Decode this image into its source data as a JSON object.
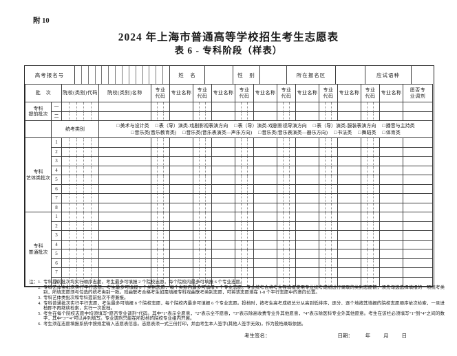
{
  "page": {
    "attachment_label": "附 10",
    "title": "2024 年上海市普通高等学校招生考生志愿表",
    "subtitle": "表 6  - 专科阶段（样表）"
  },
  "icons": {
    "checkbox_glyph": "□"
  },
  "info_row": {
    "exam_id_label": "高考报名号",
    "exam_id_box_count": 14,
    "name_label": "姓　名",
    "gender_label": "性　别",
    "district_label": "所在报名区",
    "language_label": "应试语种"
  },
  "header": {
    "batch": "批　次",
    "inst_code": "院校(类别)代码",
    "inst_name": "院校(类别)名称",
    "prof_code": "专业\n代码",
    "prof_name": "专业名称",
    "adjust": "愿否专\n业调剂",
    "pair_count": 6,
    "inst_code_subcells": 5,
    "prof_code_subcells": 3
  },
  "sections": [
    {
      "label": "专科\n提前批次",
      "rows": [
        "一",
        "二"
      ]
    },
    {
      "label": "专科\n艺体类批次",
      "rows": [
        "1",
        "2",
        "3",
        "4",
        "5",
        "6",
        "7",
        "8"
      ]
    },
    {
      "label": "专科\n普通批次",
      "rows": [
        "1",
        "2",
        "3",
        "4",
        "5",
        "6",
        "7",
        "8"
      ]
    }
  ],
  "unified_exam": {
    "label": "统考类别",
    "line1_options": [
      "美术与设计类",
      "表（导）演类-戏剧影视表演方向",
      "表（导）演类-戏剧影视导演方向",
      "表（导）演类-服装表演方向",
      "播音与主持类"
    ],
    "line2_options": [
      "音乐类(音乐教育类)",
      "音乐类(音乐表演类—声乐方向)",
      "音乐类(音乐表演类—器乐方向)",
      "书法类",
      "舞蹈类",
      "体育类"
    ]
  },
  "notes": {
    "prefix": "注：",
    "items": [
      "专科提前批次均实行顺序志愿，考生最多可填报 2 个院校志愿，每个院校内最多可填报 6 个专业志愿。",
      "专科艺体类批次实行平行志愿，考生最多可填报 8 个类别志愿，每个类别内最多可填报 6 个专业志愿。专业统考合格考生在填报使用专业统考成绩进行录取的类别志愿前，须先勾选选择填报的一项统考类别，所填志愿须与勾选的统考类别一致。戏曲联考合格考生如需填报专科戏曲联考类别志愿，可将该志愿填在 1-8 个平行志愿中的意向位置。",
      "专科艺体类批次和专科提前批次不得兼报。",
      "专科普通批次实行平行志愿，考生最多可填报 8 个院校志愿，每个院校内最多可填报 6 个专业志愿。投档时，按考生高考成绩总分从高到低排序，逐分、逐个地按其填报的院校志愿顺序依次检索，一旦进档即不再继续检索，实行一次投档。",
      "考生在每个院校志愿中均须填写“愿否专业调剂”代码。其中“1”表示全愿意，“2”表示全不愿意，“3”表示除高收费专业外其他愿意，“4”表示除医科专业外其他愿意。考生在该栏必须填写“1”到“4”之间的数字，其中“3”“4”可以并列填写。专业调剂只能在所投档的院校专业组内开展。",
      "考生须在志愿填报系统中按规定输入志愿表信息。志愿表须一式三份打印，并由考生本人签字(其他人签字无效)，作为投档录取依据。"
    ]
  },
  "signature": {
    "sign_label": "考生签名：",
    "date_label": "日期：",
    "year_label": "年",
    "month_label": "月",
    "day_label": "日"
  }
}
